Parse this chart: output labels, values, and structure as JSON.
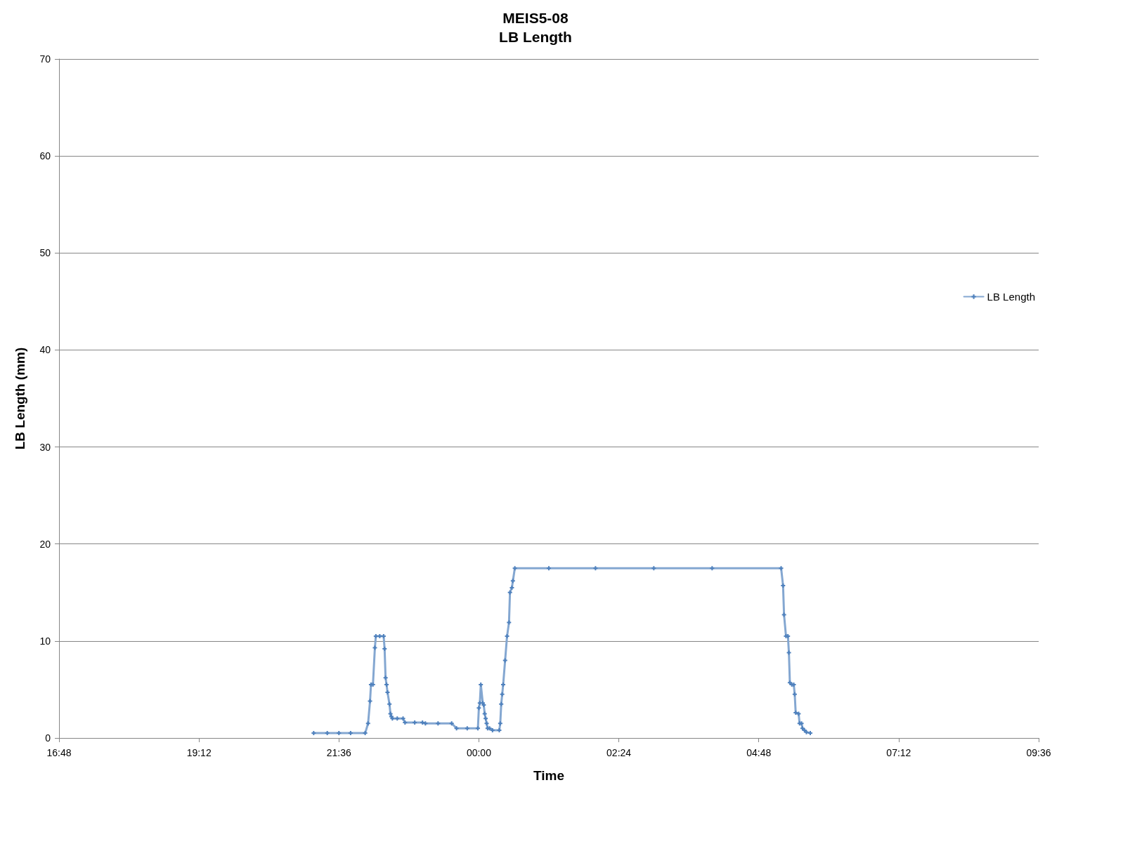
{
  "chart_data": {
    "type": "line",
    "title": "MEIS5-08",
    "subtitle": "LB Length",
    "xlabel": "Time",
    "ylabel": "LB Length (mm)",
    "xlim": [
      "--01-01T16:48",
      "--01-02T09:36"
    ],
    "xticks": [
      {
        "value": "--01-01T16:48",
        "label": "16:48"
      },
      {
        "value": "--01-01T19:12",
        "label": "19:12"
      },
      {
        "value": "--01-01T21:36",
        "label": "21:36"
      },
      {
        "value": "--01-02T00:00",
        "label": "00:00"
      },
      {
        "value": "--01-02T02:24",
        "label": "02:24"
      },
      {
        "value": "--01-02T04:48",
        "label": "04:48"
      },
      {
        "value": "--01-02T07:12",
        "label": "07:12"
      },
      {
        "value": "--01-02T09:36",
        "label": "09:36"
      }
    ],
    "ylim": [
      0,
      70
    ],
    "yticks": [
      0,
      10,
      20,
      30,
      40,
      50,
      60,
      70
    ],
    "grid": "y",
    "legend": "right",
    "marker": "cross",
    "line_style": "solid",
    "series": [
      {
        "name": "LB Length",
        "color": "#4f81bd",
        "x": [
          "--01-01T21:10",
          "--01-01T21:24",
          "--01-01T21:36",
          "--01-01T21:48",
          "--01-01T22:03",
          "--01-01T22:06",
          "--01-01T22:08",
          "--01-01T22:09",
          "--01-01T22:11",
          "--01-01T22:13",
          "--01-01T22:14",
          "--01-01T22:18",
          "--01-01T22:22",
          "--01-01T22:23",
          "--01-01T22:24",
          "--01-01T22:25",
          "--01-01T22:26",
          "--01-01T22:28",
          "--01-01T22:29",
          "--01-01T22:30",
          "--01-01T22:31",
          "--01-01T22:36",
          "--01-01T22:42",
          "--01-01T22:44",
          "--01-01T22:54",
          "--01-01T23:02",
          "--01-01T23:05",
          "--01-01T23:18",
          "--01-01T23:32",
          "--01-01T23:37",
          "--01-01T23:48",
          "--01-01T23:59",
          "--01-02T00:00",
          "--01-02T00:01",
          "--01-02T00:02",
          "--01-02T00:04",
          "--01-02T00:05",
          "--01-02T00:06",
          "--01-02T00:07",
          "--01-02T00:08",
          "--01-02T00:09",
          "--01-02T00:11",
          "--01-02T00:14",
          "--01-02T00:21",
          "--01-02T00:22",
          "--01-02T00:23",
          "--01-02T00:24",
          "--01-02T00:25",
          "--01-02T00:27",
          "--01-02T00:29",
          "--01-02T00:31",
          "--01-02T00:32",
          "--01-02T00:34",
          "--01-02T00:35",
          "--01-02T00:37",
          "--01-02T01:12",
          "--01-02T02:00",
          "--01-02T03:00",
          "--01-02T04:00",
          "--01-02T05:11",
          "--01-02T05:13",
          "--01-02T05:14",
          "--01-02T05:16",
          "--01-02T05:18",
          "--01-02T05:19",
          "--01-02T05:20",
          "--01-02T05:22",
          "--01-02T05:24",
          "--01-02T05:25",
          "--01-02T05:26",
          "--01-02T05:29",
          "--01-02T05:30",
          "--01-02T05:32",
          "--01-02T05:33",
          "--01-02T05:35",
          "--01-02T05:37",
          "--01-02T05:41"
        ],
        "values": [
          0.5,
          0.5,
          0.5,
          0.5,
          0.5,
          1.5,
          3.8,
          5.5,
          5.5,
          9.3,
          10.5,
          10.5,
          10.5,
          9.2,
          6.2,
          5.5,
          4.7,
          3.5,
          2.5,
          2.2,
          2.0,
          2.0,
          2.0,
          1.6,
          1.6,
          1.6,
          1.5,
          1.5,
          1.5,
          1.0,
          1.0,
          1.0,
          3.1,
          3.6,
          5.5,
          3.6,
          3.4,
          2.5,
          2.0,
          1.5,
          1.0,
          1.0,
          0.8,
          0.8,
          1.5,
          3.5,
          4.5,
          5.5,
          8.0,
          10.5,
          11.9,
          15.0,
          15.5,
          16.2,
          17.5,
          17.5,
          17.5,
          17.5,
          17.5,
          17.5,
          15.7,
          12.7,
          10.5,
          10.5,
          8.8,
          5.7,
          5.5,
          5.5,
          4.5,
          2.6,
          2.5,
          1.5,
          1.5,
          1.0,
          0.8,
          0.6,
          0.5
        ]
      }
    ]
  }
}
